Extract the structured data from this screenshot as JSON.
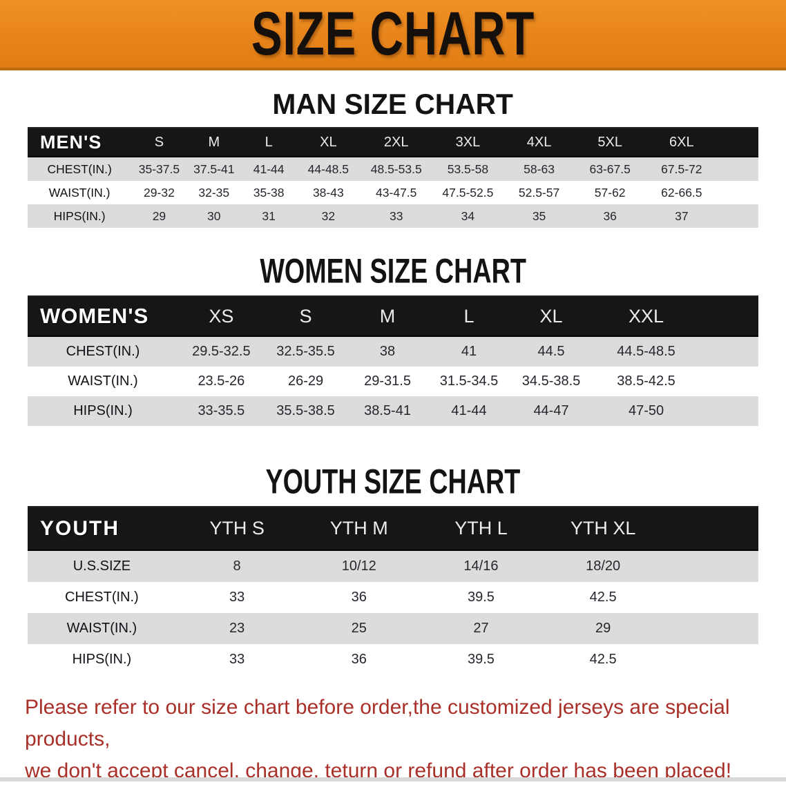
{
  "banner": {
    "title": "SIZE CHART",
    "bg_color": "#E8861D",
    "text_color": "#16100C"
  },
  "sections": [
    {
      "heading": "MAN SIZE CHART",
      "table": {
        "label": "MEN'S",
        "sizes": [
          "S",
          "M",
          "L",
          "XL",
          "2XL",
          "3XL",
          "4XL",
          "5XL",
          "6XL"
        ],
        "rows": [
          {
            "label": "CHEST(IN.)",
            "values": [
              "35-37.5",
              "37.5-41",
              "41-44",
              "44-48.5",
              "48.5-53.5",
              "53.5-58",
              "58-63",
              "63-67.5",
              "67.5-72"
            ]
          },
          {
            "label": "WAIST(IN.)",
            "values": [
              "29-32",
              "32-35",
              "35-38",
              "38-43",
              "43-47.5",
              "47.5-52.5",
              "52.5-57",
              "57-62",
              "62-66.5"
            ]
          },
          {
            "label": "HIPS(IN.)",
            "values": [
              "29",
              "30",
              "31",
              "32",
              "33",
              "34",
              "35",
              "36",
              "37"
            ]
          }
        ]
      }
    },
    {
      "heading": "WOMEN SIZE CHART",
      "table": {
        "label": "WOMEN'S",
        "sizes": [
          "XS",
          "S",
          "M",
          "L",
          "XL",
          "XXL"
        ],
        "rows": [
          {
            "label": "CHEST(IN.)",
            "values": [
              "29.5-32.5",
              "32.5-35.5",
              "38",
              "41",
              "44.5",
              "44.5-48.5"
            ]
          },
          {
            "label": "WAIST(IN.)",
            "values": [
              "23.5-26",
              "26-29",
              "29-31.5",
              "31.5-34.5",
              "34.5-38.5",
              "38.5-42.5"
            ]
          },
          {
            "label": "HIPS(IN.)",
            "values": [
              "33-35.5",
              "35.5-38.5",
              "38.5-41",
              "41-44",
              "44-47",
              "47-50"
            ]
          }
        ]
      }
    },
    {
      "heading": "YOUTH SIZE CHART",
      "table": {
        "label": "YOUTH",
        "sizes": [
          "YTH S",
          "YTH M",
          "YTH L",
          "YTH XL"
        ],
        "rows": [
          {
            "label": "U.S.SIZE",
            "values": [
              "8",
              "10/12",
              "14/16",
              "18/20"
            ]
          },
          {
            "label": "CHEST(IN.)",
            "values": [
              "33",
              "36",
              "39.5",
              "42.5"
            ]
          },
          {
            "label": "WAIST(IN.)",
            "values": [
              "23",
              "25",
              "27",
              "29"
            ]
          },
          {
            "label": "HIPS(IN.)",
            "values": [
              "33",
              "36",
              "39.5",
              "42.5"
            ]
          }
        ]
      }
    }
  ],
  "footer": {
    "line1": "Please refer to our size chart before order,the customized jerseys are special products,",
    "line2": "we don't accept cancel, change, teturn or refund after order has been placed!",
    "text_color": "#A93029"
  },
  "colors": {
    "stripe_gray": "#DCDCDC",
    "header_bar_black": "#161616",
    "banner_orange": "#E8861D"
  }
}
